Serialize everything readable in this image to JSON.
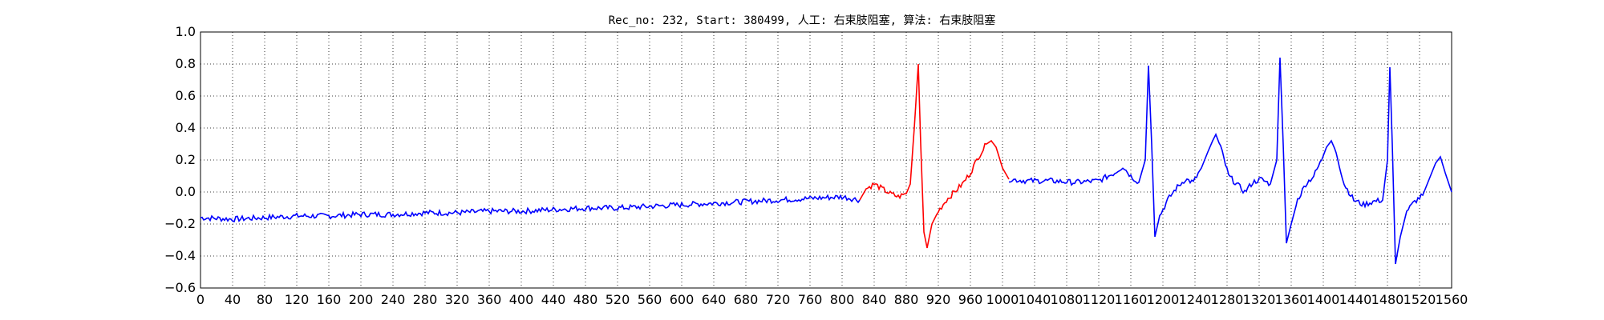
{
  "chart_data": {
    "type": "line",
    "title": "Rec_no: 232, Start: 380499, 人工: 右束肢阻塞, 算法: 右束肢阻塞",
    "xlabel": "",
    "ylabel": "",
    "xlim": [
      0,
      1560
    ],
    "ylim": [
      -0.6,
      1.0
    ],
    "grid": true,
    "x_ticks": [
      "0",
      "40",
      "80",
      "120",
      "160",
      "200",
      "240",
      "280",
      "320",
      "360",
      "400",
      "440",
      "480",
      "520",
      "560",
      "600",
      "640",
      "680",
      "720",
      "760",
      "800",
      "840",
      "880",
      "920",
      "960",
      "1000",
      "1040",
      "1080",
      "1120",
      "1160",
      "1200",
      "1240",
      "1280",
      "1320",
      "1360",
      "1400",
      "1440",
      "1480",
      "1520",
      "1560"
    ],
    "y_ticks": [
      "1.0",
      "0.8",
      "0.6",
      "0.4",
      "0.2",
      "0.0",
      "−0.2",
      "−0.4",
      "−0.6"
    ],
    "segments": [
      {
        "color": "#0000ff",
        "points": [
          [
            0,
            -0.16
          ],
          [
            40,
            -0.17
          ],
          [
            80,
            -0.16
          ],
          [
            120,
            -0.15
          ],
          [
            160,
            -0.15
          ],
          [
            200,
            -0.14
          ],
          [
            240,
            -0.14
          ],
          [
            280,
            -0.13
          ],
          [
            320,
            -0.13
          ],
          [
            360,
            -0.12
          ],
          [
            400,
            -0.12
          ],
          [
            440,
            -0.11
          ],
          [
            480,
            -0.1
          ],
          [
            520,
            -0.1
          ],
          [
            560,
            -0.09
          ],
          [
            600,
            -0.08
          ],
          [
            640,
            -0.07
          ],
          [
            680,
            -0.06
          ],
          [
            720,
            -0.05
          ],
          [
            760,
            -0.04
          ],
          [
            800,
            -0.03
          ],
          [
            822,
            -0.05
          ]
        ]
      },
      {
        "color": "#ff0000",
        "points": [
          [
            822,
            -0.05
          ],
          [
            830,
            0.02
          ],
          [
            840,
            0.05
          ],
          [
            850,
            0.02
          ],
          [
            860,
            -0.01
          ],
          [
            870,
            -0.03
          ],
          [
            880,
            -0.01
          ],
          [
            885,
            0.05
          ],
          [
            890,
            0.4
          ],
          [
            895,
            0.8
          ],
          [
            898,
            0.3
          ],
          [
            902,
            -0.25
          ],
          [
            906,
            -0.35
          ],
          [
            912,
            -0.2
          ],
          [
            920,
            -0.12
          ],
          [
            930,
            -0.05
          ],
          [
            940,
            0.0
          ],
          [
            950,
            0.05
          ],
          [
            960,
            0.12
          ],
          [
            970,
            0.22
          ],
          [
            980,
            0.3
          ],
          [
            986,
            0.32
          ],
          [
            992,
            0.28
          ],
          [
            1000,
            0.15
          ],
          [
            1008,
            0.08
          ]
        ]
      },
      {
        "color": "#0000ff",
        "points": [
          [
            1008,
            0.08
          ],
          [
            1030,
            0.07
          ],
          [
            1060,
            0.07
          ],
          [
            1090,
            0.06
          ],
          [
            1120,
            0.07
          ],
          [
            1140,
            0.12
          ],
          [
            1150,
            0.16
          ],
          [
            1160,
            0.1
          ],
          [
            1170,
            0.06
          ],
          [
            1178,
            0.2
          ],
          [
            1182,
            0.79
          ],
          [
            1186,
            0.3
          ],
          [
            1190,
            -0.28
          ],
          [
            1196,
            -0.15
          ],
          [
            1206,
            -0.05
          ],
          [
            1216,
            0.02
          ],
          [
            1228,
            0.08
          ],
          [
            1238,
            0.06
          ],
          [
            1248,
            0.15
          ],
          [
            1256,
            0.25
          ],
          [
            1262,
            0.32
          ],
          [
            1266,
            0.36
          ],
          [
            1272,
            0.28
          ],
          [
            1282,
            0.1
          ],
          [
            1292,
            0.05
          ],
          [
            1302,
            0.0
          ],
          [
            1312,
            0.06
          ],
          [
            1322,
            0.08
          ],
          [
            1334,
            0.05
          ],
          [
            1342,
            0.2
          ],
          [
            1346,
            0.84
          ],
          [
            1350,
            0.3
          ],
          [
            1354,
            -0.32
          ],
          [
            1360,
            -0.2
          ],
          [
            1368,
            -0.05
          ],
          [
            1378,
            0.05
          ],
          [
            1388,
            0.1
          ],
          [
            1398,
            0.2
          ],
          [
            1404,
            0.28
          ],
          [
            1410,
            0.32
          ],
          [
            1416,
            0.25
          ],
          [
            1426,
            0.05
          ],
          [
            1438,
            -0.05
          ],
          [
            1450,
            -0.08
          ],
          [
            1462,
            -0.06
          ],
          [
            1474,
            -0.05
          ],
          [
            1480,
            0.2
          ],
          [
            1483,
            0.78
          ],
          [
            1486,
            0.3
          ],
          [
            1490,
            -0.45
          ],
          [
            1496,
            -0.28
          ],
          [
            1504,
            -0.12
          ],
          [
            1514,
            -0.06
          ],
          [
            1524,
            -0.02
          ],
          [
            1532,
            0.08
          ],
          [
            1540,
            0.18
          ],
          [
            1546,
            0.22
          ],
          [
            1552,
            0.12
          ],
          [
            1560,
            0.0
          ]
        ]
      }
    ]
  },
  "page_size": {
    "width": 2000,
    "height": 400
  }
}
